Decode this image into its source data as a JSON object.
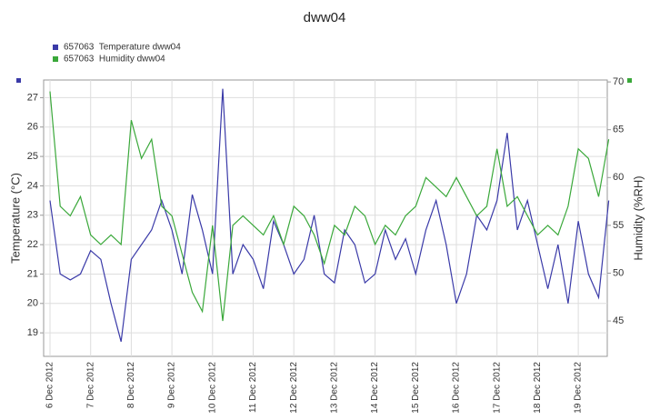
{
  "chart_data": {
    "type": "line",
    "title": "dww04",
    "categories": [
      "6 Dec 2012",
      null,
      null,
      null,
      "7 Dec 2012",
      null,
      null,
      null,
      "8 Dec 2012",
      null,
      null,
      null,
      "9 Dec 2012",
      null,
      null,
      null,
      "10 Dec 2012",
      null,
      null,
      null,
      "11 Dec 2012",
      null,
      null,
      null,
      "12 Dec 2012",
      null,
      null,
      null,
      "13 Dec 2012",
      null,
      null,
      null,
      "14 Dec 2012",
      null,
      null,
      null,
      "15 Dec 2012",
      null,
      null,
      null,
      "16 Dec 2012",
      null,
      null,
      null,
      "17 Dec 2012",
      null,
      null,
      null,
      "18 Dec 2012",
      null,
      null,
      null,
      "19 Dec 2012",
      null,
      null,
      null
    ],
    "series": [
      {
        "name": "657063  Temperature dww04",
        "color": "#3a3aa8",
        "axis": "y",
        "values": [
          23.5,
          21,
          20.8,
          21,
          21.8,
          21.5,
          20,
          18.7,
          21.5,
          22,
          22.5,
          23.5,
          22.5,
          21,
          23.7,
          22.5,
          21,
          27.3,
          21,
          22,
          21.5,
          20.5,
          22.8,
          22,
          21,
          21.5,
          23,
          21,
          20.7,
          22.5,
          22,
          20.7,
          21,
          22.5,
          21.5,
          22.2,
          21,
          22.5,
          23.5,
          22,
          20,
          21,
          23,
          22.5,
          23.5,
          25.8,
          22.5,
          23.5,
          22,
          20.5,
          22,
          20,
          22.8,
          21,
          20.2,
          23.5
        ]
      },
      {
        "name": "657063  Humidity dww04",
        "color": "#3aa83a",
        "axis": "y2",
        "values": [
          69,
          57,
          56,
          58,
          54,
          53,
          54,
          53,
          66,
          62,
          64,
          57,
          56,
          52,
          48,
          46,
          55,
          45,
          55,
          56,
          55,
          54,
          56,
          53,
          57,
          56,
          54,
          51,
          55,
          54,
          57,
          56,
          53,
          55,
          54,
          56,
          57,
          60,
          59,
          58,
          60,
          58,
          56,
          57,
          63,
          57,
          58,
          56,
          54,
          55,
          54,
          57,
          63,
          62,
          58,
          64
        ]
      }
    ],
    "ylabel": "Temperature (°C)",
    "y2label": "Humidity (%RH)",
    "ylim": [
      18.2,
      27.6
    ],
    "yticks": [
      19,
      20,
      21,
      22,
      23,
      24,
      25,
      26,
      27
    ],
    "y2lim": [
      41.3,
      70.2
    ],
    "y2ticks": [
      45,
      50,
      55,
      60,
      65,
      70
    ],
    "grid": true,
    "legend": "top-left"
  }
}
